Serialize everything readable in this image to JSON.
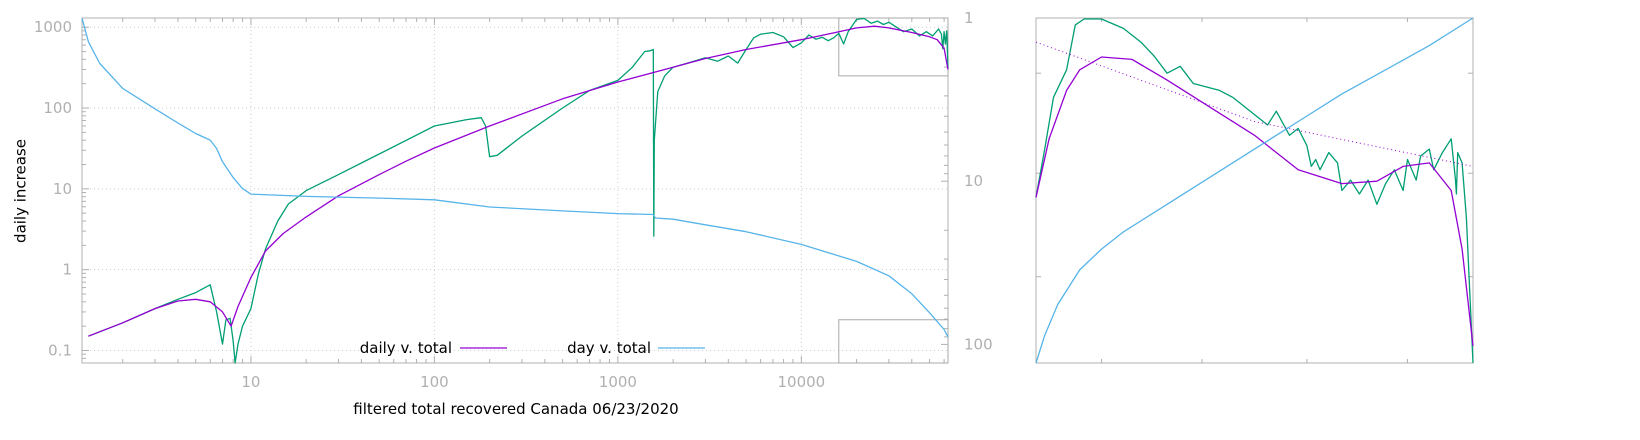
{
  "chart_data": [
    {
      "type": "line",
      "title": "",
      "xlabel": "filtered total recovered Canada 06/23/2020",
      "ylabel": "daily increase",
      "x_scale": "log",
      "y_scale": "log",
      "xlim": [
        1.2,
        63000
      ],
      "ylim": [
        0.07,
        1300
      ],
      "y2_scale": "log",
      "y2_direction": "inverted",
      "y2lim": [
        1,
        130
      ],
      "grid": true,
      "legend_placement": "bottom-center",
      "x_ticks": [
        {
          "value": 10,
          "label": "10"
        },
        {
          "value": 100,
          "label": "100"
        },
        {
          "value": 1000,
          "label": "1000"
        },
        {
          "value": 10000,
          "label": "10000"
        }
      ],
      "y_ticks": [
        {
          "value": 0.1,
          "label": "0.1"
        },
        {
          "value": 1,
          "label": "1"
        },
        {
          "value": 10,
          "label": "10"
        },
        {
          "value": 100,
          "label": "100"
        },
        {
          "value": 1000,
          "label": "1000"
        }
      ],
      "y2_ticks": [
        {
          "value": 1,
          "label": "1"
        },
        {
          "value": 10,
          "label": "10"
        },
        {
          "value": 100,
          "label": "100"
        }
      ],
      "zoom_box": {
        "x": [
          16000,
          63000
        ],
        "y": [
          250,
          1300
        ]
      },
      "zoom_box2": {
        "x": [
          16000,
          63000
        ],
        "y": [
          0.07,
          0.24
        ]
      },
      "series": [
        {
          "name": "daily v. total",
          "color": "#9400d3",
          "axis": "left",
          "points": [
            [
              1.3,
              0.15
            ],
            [
              2,
              0.22
            ],
            [
              3,
              0.33
            ],
            [
              4,
              0.41
            ],
            [
              5,
              0.43
            ],
            [
              6,
              0.4
            ],
            [
              7,
              0.3
            ],
            [
              7.8,
              0.2
            ],
            [
              8.5,
              0.35
            ],
            [
              10,
              0.8
            ],
            [
              12,
              1.7
            ],
            [
              15,
              2.8
            ],
            [
              20,
              4.5
            ],
            [
              30,
              8.2
            ],
            [
              50,
              15
            ],
            [
              70,
              22
            ],
            [
              100,
              32
            ],
            [
              200,
              60
            ],
            [
              500,
              130
            ],
            [
              1000,
              210
            ],
            [
              2000,
              320
            ],
            [
              3000,
              410
            ],
            [
              5000,
              530
            ],
            [
              10000,
              700
            ],
            [
              15000,
              850
            ],
            [
              20000,
              980
            ],
            [
              25000,
              1030
            ],
            [
              30000,
              980
            ],
            [
              40000,
              860
            ],
            [
              50000,
              760
            ],
            [
              55000,
              700
            ],
            [
              60000,
              550
            ],
            [
              63000,
              300
            ]
          ]
        },
        {
          "name": "",
          "color": "#009e73",
          "axis": "left",
          "points": [
            [
              1.3,
              0.15
            ],
            [
              2,
              0.22
            ],
            [
              3,
              0.33
            ],
            [
              4,
              0.43
            ],
            [
              5,
              0.52
            ],
            [
              6,
              0.65
            ],
            [
              6.5,
              0.3
            ],
            [
              7,
              0.12
            ],
            [
              7.3,
              0.24
            ],
            [
              7.7,
              0.25
            ],
            [
              8,
              0.13
            ],
            [
              8.2,
              0.07
            ],
            [
              8.5,
              0.12
            ],
            [
              9,
              0.2
            ],
            [
              10,
              0.33
            ],
            [
              11,
              0.9
            ],
            [
              12,
              1.8
            ],
            [
              14,
              4
            ],
            [
              16,
              6.5
            ],
            [
              20,
              9.5
            ],
            [
              30,
              15
            ],
            [
              50,
              27
            ],
            [
              100,
              60
            ],
            [
              150,
              72
            ],
            [
              180,
              76
            ],
            [
              190,
              60
            ],
            [
              200,
              25
            ],
            [
              220,
              26
            ],
            [
              300,
              45
            ],
            [
              500,
              100
            ],
            [
              700,
              165
            ],
            [
              1000,
              220
            ],
            [
              1200,
              320
            ],
            [
              1400,
              500
            ],
            [
              1500,
              510
            ],
            [
              1560,
              530
            ],
            [
              1570,
              2.6
            ],
            [
              1580,
              40
            ],
            [
              1650,
              160
            ],
            [
              1800,
              250
            ],
            [
              2000,
              320
            ],
            [
              2500,
              370
            ],
            [
              3000,
              420
            ],
            [
              3500,
              380
            ],
            [
              4000,
              440
            ],
            [
              4500,
              360
            ],
            [
              5000,
              530
            ],
            [
              5500,
              740
            ],
            [
              6000,
              820
            ],
            [
              7000,
              860
            ],
            [
              8000,
              760
            ],
            [
              9000,
              560
            ],
            [
              10000,
              640
            ],
            [
              11000,
              800
            ],
            [
              12000,
              710
            ],
            [
              13000,
              750
            ],
            [
              14000,
              680
            ],
            [
              15000,
              740
            ],
            [
              16000,
              840
            ],
            [
              17000,
              620
            ],
            [
              18000,
              880
            ],
            [
              20000,
              1250
            ],
            [
              22000,
              1280
            ],
            [
              24000,
              1120
            ],
            [
              26000,
              1190
            ],
            [
              28000,
              1080
            ],
            [
              30000,
              1150
            ],
            [
              33000,
              1000
            ],
            [
              36000,
              880
            ],
            [
              40000,
              950
            ],
            [
              44000,
              780
            ],
            [
              48000,
              880
            ],
            [
              52000,
              780
            ],
            [
              56000,
              950
            ],
            [
              58000,
              820
            ],
            [
              59000,
              540
            ],
            [
              60000,
              880
            ],
            [
              61000,
              620
            ],
            [
              62000,
              900
            ],
            [
              63000,
              310
            ]
          ]
        },
        {
          "name": "day v. total",
          "color": "#56b4e9",
          "axis": "right",
          "points": [
            [
              1.2,
              1
            ],
            [
              1.3,
              1.4
            ],
            [
              1.5,
              1.9
            ],
            [
              2,
              2.7
            ],
            [
              3,
              3.6
            ],
            [
              4,
              4.4
            ],
            [
              5,
              5.1
            ],
            [
              6,
              5.6
            ],
            [
              6.5,
              6.3
            ],
            [
              7,
              7.6
            ],
            [
              8,
              9.5
            ],
            [
              9,
              11.1
            ],
            [
              10,
              12
            ],
            [
              20,
              12.4
            ],
            [
              50,
              12.7
            ],
            [
              100,
              13
            ],
            [
              200,
              14.4
            ],
            [
              500,
              15.2
            ],
            [
              1000,
              15.8
            ],
            [
              1560,
              16
            ],
            [
              1600,
              16.8
            ],
            [
              2000,
              17.1
            ],
            [
              3000,
              18.5
            ],
            [
              5000,
              20.4
            ],
            [
              10000,
              24.4
            ],
            [
              20000,
              31
            ],
            [
              30000,
              38
            ],
            [
              40000,
              49
            ],
            [
              50000,
              64
            ],
            [
              60000,
              81
            ],
            [
              63000,
              90
            ]
          ]
        }
      ]
    },
    {
      "type": "line",
      "title": "",
      "xlabel": "",
      "ylabel": "",
      "grid": false,
      "series": [
        {
          "name": "",
          "color": "#9400d3",
          "points": [
            [
              0,
              0.48
            ],
            [
              0.03,
              0.65
            ],
            [
              0.07,
              0.79
            ],
            [
              0.1,
              0.85
            ],
            [
              0.15,
              0.887
            ],
            [
              0.22,
              0.88
            ],
            [
              0.3,
              0.82
            ],
            [
              0.4,
              0.74
            ],
            [
              0.5,
              0.66
            ],
            [
              0.6,
              0.56
            ],
            [
              0.7,
              0.52
            ],
            [
              0.78,
              0.527
            ],
            [
              0.84,
              0.57
            ],
            [
              0.9,
              0.58
            ],
            [
              0.95,
              0.5
            ],
            [
              0.975,
              0.33
            ],
            [
              1,
              0.05
            ]
          ]
        },
        {
          "name": "",
          "color": "#009e73",
          "points": [
            [
              0,
              0.48
            ],
            [
              0.02,
              0.62
            ],
            [
              0.04,
              0.77
            ],
            [
              0.07,
              0.85
            ],
            [
              0.09,
              0.98
            ],
            [
              0.11,
              0.997
            ],
            [
              0.15,
              0.997
            ],
            [
              0.2,
              0.97
            ],
            [
              0.24,
              0.93
            ],
            [
              0.27,
              0.89
            ],
            [
              0.3,
              0.84
            ],
            [
              0.33,
              0.86
            ],
            [
              0.36,
              0.81
            ],
            [
              0.42,
              0.79
            ],
            [
              0.45,
              0.77
            ],
            [
              0.5,
              0.72
            ],
            [
              0.53,
              0.69
            ],
            [
              0.55,
              0.73
            ],
            [
              0.58,
              0.66
            ],
            [
              0.6,
              0.68
            ],
            [
              0.62,
              0.63
            ],
            [
              0.63,
              0.57
            ],
            [
              0.64,
              0.59
            ],
            [
              0.65,
              0.56
            ],
            [
              0.67,
              0.61
            ],
            [
              0.69,
              0.58
            ],
            [
              0.7,
              0.5
            ],
            [
              0.72,
              0.53
            ],
            [
              0.74,
              0.49
            ],
            [
              0.76,
              0.53
            ],
            [
              0.78,
              0.46
            ],
            [
              0.8,
              0.52
            ],
            [
              0.82,
              0.56
            ],
            [
              0.84,
              0.5
            ],
            [
              0.85,
              0.59
            ],
            [
              0.87,
              0.53
            ],
            [
              0.88,
              0.6
            ],
            [
              0.9,
              0.62
            ],
            [
              0.91,
              0.56
            ],
            [
              0.93,
              0.61
            ],
            [
              0.95,
              0.65
            ],
            [
              0.96,
              0.53
            ],
            [
              0.962,
              0.49
            ],
            [
              0.965,
              0.61
            ],
            [
              0.975,
              0.58
            ],
            [
              0.985,
              0.42
            ],
            [
              1,
              0.0
            ]
          ]
        },
        {
          "name": "",
          "color": "#56b4e9",
          "points": [
            [
              0,
              0.0
            ],
            [
              0.02,
              0.08
            ],
            [
              0.05,
              0.17
            ],
            [
              0.1,
              0.27
            ],
            [
              0.15,
              0.33
            ],
            [
              0.2,
              0.38
            ],
            [
              0.3,
              0.46
            ],
            [
              0.4,
              0.54
            ],
            [
              0.5,
              0.62
            ],
            [
              0.6,
              0.7
            ],
            [
              0.7,
              0.78
            ],
            [
              0.8,
              0.85
            ],
            [
              0.9,
              0.92
            ],
            [
              1,
              1.0
            ]
          ]
        },
        {
          "name": "",
          "color": "#9400d3",
          "style": "dotted",
          "points": [
            [
              0,
              0.93
            ],
            [
              0.5,
              0.7
            ],
            [
              1,
              0.57
            ]
          ]
        }
      ]
    }
  ]
}
